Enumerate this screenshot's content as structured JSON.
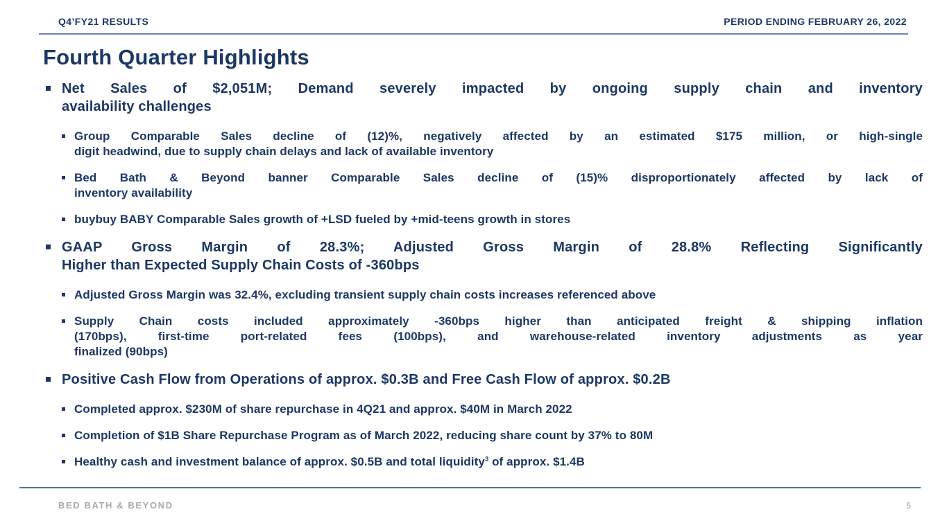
{
  "slide": {
    "header": {
      "left": "Q4’FY21 RESULTS",
      "right": "PERIOD ENDING FEBRUARY 26, 2022"
    },
    "title": "Fourth Quarter Highlights",
    "sections": [
      {
        "lines": [
          "Net Sales of $2,051M; Demand severely impacted by ongoing supply chain and inventory",
          "availability challenges"
        ],
        "subs": [
          {
            "lines": [
              "Group Comparable Sales decline of (12)%, negatively affected by an estimated $175 million, or high-single",
              "digit headwind, due to supply chain delays and lack of available inventory"
            ]
          },
          {
            "lines": [
              "Bed Bath & Beyond banner Comparable Sales decline of (15)% disproportionately affected by lack of",
              "inventory availability"
            ]
          },
          {
            "lines": [
              "buybuy BABY Comparable Sales growth of +LSD fueled by +mid-teens growth in stores"
            ]
          }
        ]
      },
      {
        "lines": [
          "GAAP Gross Margin of 28.3%; Adjusted Gross Margin of 28.8% Reflecting Significantly",
          "Higher than Expected Supply Chain Costs of -360bps"
        ],
        "subs": [
          {
            "lines": [
              "Adjusted Gross Margin was 32.4%, excluding transient supply chain costs increases referenced above"
            ]
          },
          {
            "lines": [
              "Supply Chain costs included approximately -360bps higher than anticipated freight & shipping inflation",
              "(170bps), first-time port-related fees (100bps), and warehouse-related inventory adjustments as year",
              "finalized (90bps)"
            ]
          }
        ]
      },
      {
        "lines": [
          "Positive Cash Flow from Operations of approx. $0.3B and Free Cash Flow of approx. $0.2B"
        ],
        "subs": [
          {
            "lines": [
              "Completed approx. $230M of share repurchase in 4Q21 and approx. $40M in March 2022"
            ]
          },
          {
            "lines": [
              "Completion of $1B Share Repurchase Program as of March 2022, reducing share count by 37% to 80M"
            ]
          },
          {
            "pre": "Healthy cash and investment balance of approx. $0.5B and total liquidity",
            "sup": "3",
            "post": " of approx. $1.4B"
          }
        ]
      }
    ],
    "footer": {
      "brand": "BED BATH & BEYOND",
      "page_number": "5"
    },
    "colors": {
      "navy": "#1b3764",
      "rule_top": "#6f84b2",
      "rule_bottom": "#53718e",
      "gray": "#a6abb0",
      "page_gray": "#9ba1a6"
    }
  }
}
